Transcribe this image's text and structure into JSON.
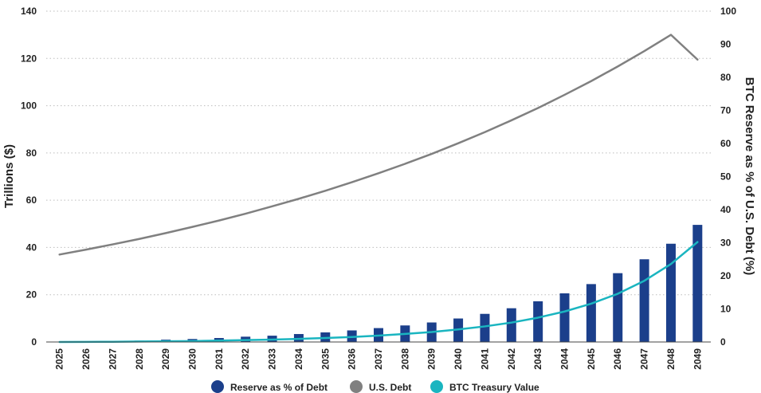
{
  "chart_data": {
    "type": "bar",
    "categories": [
      "2025",
      "2026",
      "2027",
      "2028",
      "2029",
      "2030",
      "2031",
      "2032",
      "2033",
      "2034",
      "2035",
      "2036",
      "2037",
      "2038",
      "2039",
      "2040",
      "2041",
      "2042",
      "2043",
      "2044",
      "2045",
      "2046",
      "2047",
      "2048",
      "2049"
    ],
    "series": [
      {
        "name": "Reserve as % of Debt",
        "type": "bar",
        "axis": "right",
        "color": "#1b3f8b",
        "values": [
          0.0,
          0.1,
          0.2,
          0.4,
          0.7,
          0.9,
          1.2,
          1.6,
          1.9,
          2.4,
          2.9,
          3.5,
          4.2,
          5.0,
          5.9,
          7.1,
          8.5,
          10.2,
          12.3,
          14.7,
          17.5,
          20.8,
          25.0,
          29.7,
          35.4
        ]
      },
      {
        "name": "U.S. Debt",
        "type": "line",
        "axis": "left",
        "color": "#808080",
        "values": [
          37.0,
          39.1,
          41.3,
          43.6,
          46.1,
          48.7,
          51.4,
          54.3,
          57.4,
          60.6,
          64.0,
          67.6,
          71.4,
          75.4,
          79.6,
          84.1,
          88.8,
          93.8,
          99.0,
          104.6,
          110.4,
          116.6,
          123.1,
          130.0,
          119.5
        ]
      },
      {
        "name": "BTC Treasury Value",
        "type": "line",
        "axis": "left",
        "color": "#1ab5c0",
        "values": [
          0.0,
          0.05,
          0.1,
          0.2,
          0.3,
          0.4,
          0.6,
          0.8,
          1.0,
          1.3,
          1.7,
          2.1,
          2.7,
          3.4,
          4.2,
          5.3,
          6.6,
          8.2,
          10.3,
          12.9,
          16.2,
          20.4,
          25.9,
          33.0,
          42.3
        ]
      }
    ],
    "left_axis": {
      "title": "Trillions ($)",
      "range": [
        0,
        140
      ],
      "ticks": [
        "0",
        "20",
        "40",
        "60",
        "80",
        "100",
        "120",
        "140"
      ]
    },
    "right_axis": {
      "title": "BTC Reserve as % of U.S. Debt (%)",
      "range": [
        0,
        100
      ],
      "ticks": [
        "0",
        "10",
        "20",
        "30",
        "40",
        "50",
        "60",
        "70",
        "80",
        "90",
        "100"
      ]
    },
    "grid": "horizontal-dotted",
    "legend_position": "bottom"
  }
}
